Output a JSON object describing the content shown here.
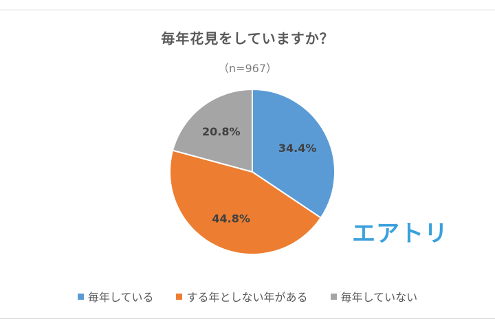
{
  "chart_data": {
    "type": "pie",
    "title": "毎年花見をしていますか？",
    "subtitle": "（n=967）",
    "categories": [
      "毎年している",
      "する年としない年がある",
      "毎年していない"
    ],
    "values": [
      34.4,
      44.8,
      20.8
    ],
    "labels": [
      "34.4%",
      "44.8%",
      "20.8%"
    ],
    "colors": [
      "#5b9bd5",
      "#ed7d31",
      "#a5a5a5"
    ],
    "legend_position": "bottom"
  },
  "logo_text": "エアトリ",
  "colors": {
    "label_text": "#404040",
    "title_text": "#595959",
    "logo": "#3aa0dc"
  }
}
